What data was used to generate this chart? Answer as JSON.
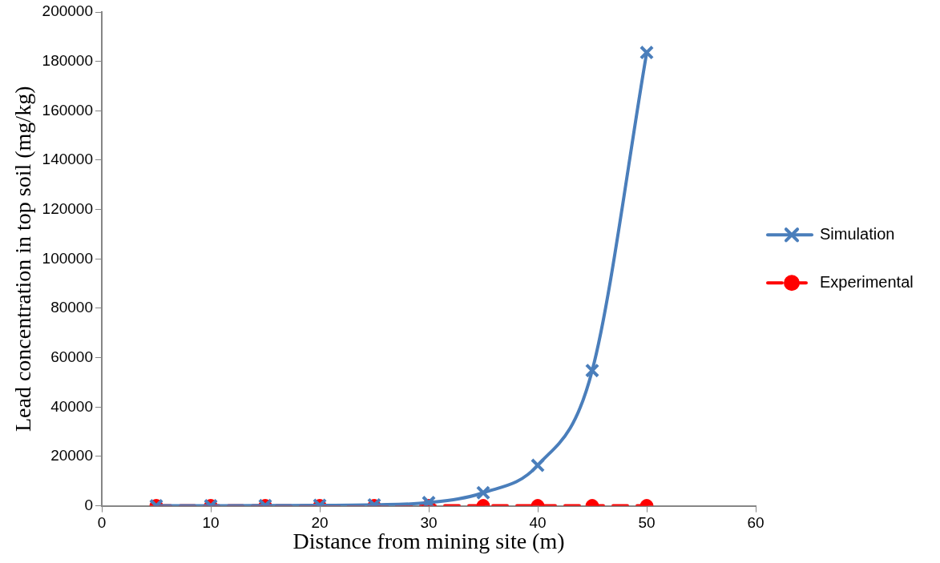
{
  "chart_data": {
    "type": "line",
    "xlabel": "Distance from mining site (m)",
    "ylabel": "Lead concentration in top soil (mg/kg)",
    "x": [
      5,
      10,
      15,
      20,
      25,
      30,
      35,
      40,
      45,
      50
    ],
    "series": [
      {
        "name": "Simulation",
        "color": "#4a7ebb",
        "marker": "cross",
        "line_style": "solid",
        "values": [
          0,
          0,
          100,
          200,
          400,
          1300,
          5300,
          16400,
          54800,
          183600
        ]
      },
      {
        "name": "Experimental",
        "color": "#ff0000",
        "marker": "circle",
        "line_style": "dashed",
        "values": [
          0,
          0,
          0,
          0,
          0,
          0,
          0,
          0,
          0,
          0
        ]
      }
    ],
    "xlim": [
      0,
      60
    ],
    "xticks": [
      0,
      10,
      20,
      30,
      40,
      50,
      60
    ],
    "ylim": [
      0,
      200000
    ],
    "yticks": [
      0,
      20000,
      40000,
      60000,
      80000,
      100000,
      120000,
      140000,
      160000,
      180000,
      200000
    ],
    "grid": false,
    "legend": "right"
  }
}
